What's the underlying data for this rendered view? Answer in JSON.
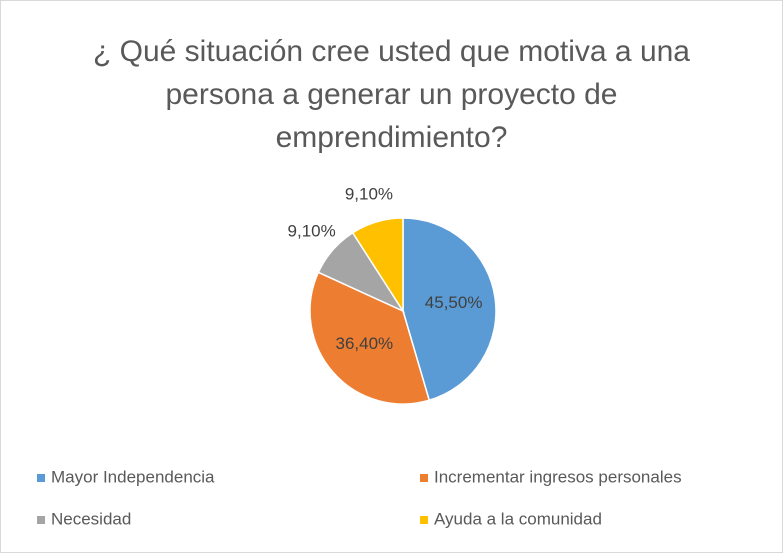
{
  "chart_data": {
    "type": "pie",
    "title": "¿ Qué situación cree usted que motiva a una persona a generar un proyecto de emprendimiento?",
    "categories": [
      "Mayor Independencia",
      "Incrementar ingresos personales",
      "Necesidad",
      "Ayuda a la comunidad"
    ],
    "values": [
      45.5,
      36.4,
      9.1,
      9.1
    ],
    "value_labels": [
      "45,50%",
      "36,40%",
      "9,10%",
      "9,10%"
    ],
    "colors": [
      "#5b9bd5",
      "#ed7d31",
      "#a5a5a5",
      "#ffc000"
    ],
    "legend": "bottom"
  }
}
